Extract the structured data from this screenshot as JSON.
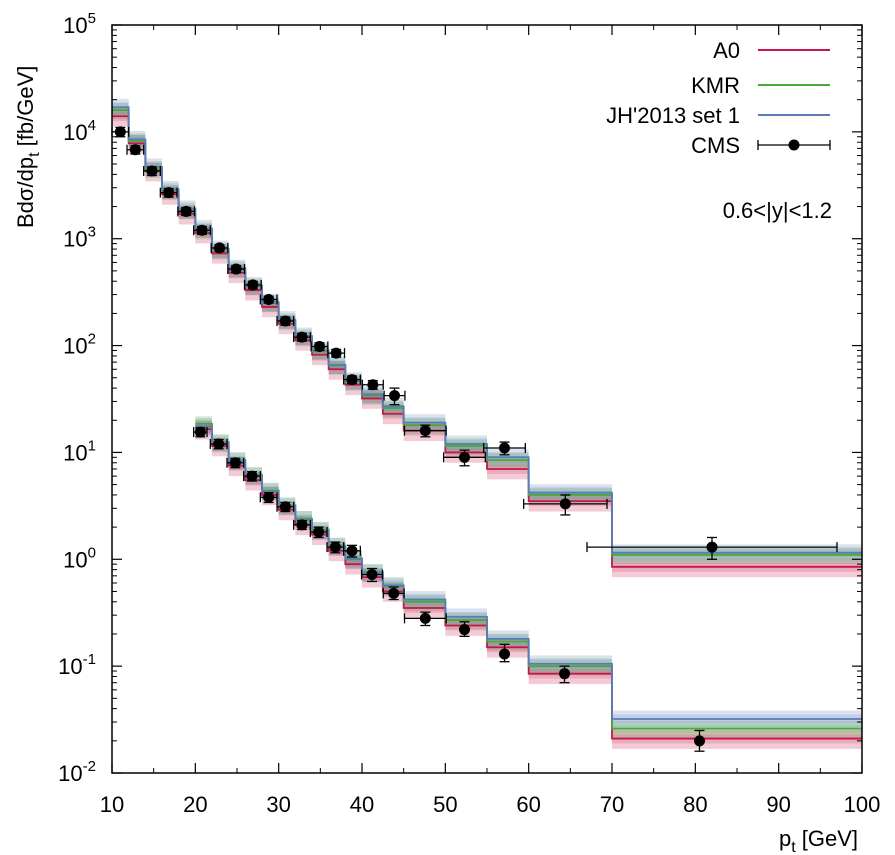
{
  "chart_data": {
    "type": "step",
    "title": "",
    "xlabel": {
      "main": "p",
      "sub": "t",
      "unit": " [GeV]"
    },
    "ylabel": {
      "main": "Bdσ/dp",
      "sub": "t",
      "unit": " [fb/GeV]"
    },
    "xlim": [
      10,
      100
    ],
    "ylim_log10": [
      -2,
      5
    ],
    "yscale": "log",
    "x_ticks": [
      {
        "v": 10,
        "label": "10"
      },
      {
        "v": 20,
        "label": "20"
      },
      {
        "v": 30,
        "label": "30"
      },
      {
        "v": 40,
        "label": "40"
      },
      {
        "v": 50,
        "label": "50"
      },
      {
        "v": 60,
        "label": "60"
      },
      {
        "v": 70,
        "label": "70"
      },
      {
        "v": 80,
        "label": "80"
      },
      {
        "v": 90,
        "label": "90"
      },
      {
        "v": 100,
        "label": "100"
      }
    ],
    "y_ticks": [
      {
        "exp": -2,
        "base": "10",
        "sup": "-2"
      },
      {
        "exp": -1,
        "base": "10",
        "sup": "-1"
      },
      {
        "exp": 0,
        "base": "10",
        "sup": "0"
      },
      {
        "exp": 1,
        "base": "10",
        "sup": "1"
      },
      {
        "exp": 2,
        "base": "10",
        "sup": "2"
      },
      {
        "exp": 3,
        "base": "10",
        "sup": "3"
      },
      {
        "exp": 4,
        "base": "10",
        "sup": "4"
      },
      {
        "exp": 5,
        "base": "10",
        "sup": "5"
      }
    ],
    "annotation": "0.6<|y|<1.2",
    "colors": {
      "A0": "#c8144b",
      "KMR": "#4aa83c",
      "JH2013": "#5a7ab8",
      "CMS": "#000000"
    },
    "legend": [
      {
        "key": "A0",
        "label": "A0"
      },
      {
        "key": "KMR",
        "label": "KMR"
      },
      {
        "key": "JH2013",
        "label": "JH'2013 set 1"
      },
      {
        "key": "CMS",
        "label": "CMS"
      }
    ],
    "datasets": [
      {
        "name": "upper",
        "bins": [
          [
            10,
            12
          ],
          [
            12,
            14
          ],
          [
            14,
            16
          ],
          [
            16,
            18
          ],
          [
            18,
            20
          ],
          [
            20,
            22
          ],
          [
            22,
            24
          ],
          [
            24,
            26
          ],
          [
            26,
            28
          ],
          [
            28,
            30
          ],
          [
            30,
            32
          ],
          [
            32,
            34
          ],
          [
            34,
            36
          ],
          [
            36,
            38
          ],
          [
            38,
            40
          ],
          [
            40,
            42.5
          ],
          [
            42.5,
            45
          ],
          [
            45,
            50
          ],
          [
            50,
            55
          ],
          [
            55,
            60
          ],
          [
            60,
            70
          ],
          [
            70,
            100
          ]
        ],
        "A0": [
          14000,
          7800,
          4300,
          2600,
          1700,
          1130,
          730,
          480,
          330,
          230,
          160,
          112,
          82,
          60,
          43,
          32,
          23,
          16,
          10.0,
          7.0,
          3.5,
          0.85
        ],
        "KMR": [
          16000,
          8200,
          4500,
          2800,
          1850,
          1200,
          780,
          520,
          360,
          250,
          170,
          120,
          88,
          65,
          46,
          34,
          26,
          18,
          11.5,
          8.5,
          4.0,
          1.1
        ],
        "JH2013": [
          17000,
          8500,
          4700,
          2900,
          1900,
          1250,
          800,
          530,
          365,
          255,
          175,
          123,
          90,
          66,
          47,
          35,
          27,
          19,
          12.0,
          9.0,
          4.2,
          1.15
        ],
        "cms_x": [
          11,
          12.8,
          14.8,
          16.8,
          18.9,
          20.8,
          22.9,
          24.9,
          26.9,
          28.8,
          30.8,
          32.8,
          34.9,
          36.9,
          38.8,
          41.3,
          43.9,
          47.6,
          52.3,
          57.1,
          64.4,
          82.0
        ],
        "cms_y": [
          10000,
          6800,
          4300,
          2700,
          1800,
          1200,
          820,
          520,
          370,
          270,
          170,
          120,
          98,
          85,
          48,
          43,
          34,
          16,
          9,
          11,
          3.3,
          1.3
        ],
        "cms_ylo": [
          9000,
          6200,
          3900,
          2450,
          1650,
          1100,
          760,
          480,
          340,
          250,
          155,
          110,
          90,
          78,
          44,
          39,
          28,
          14,
          7.5,
          9.5,
          2.6,
          1.0
        ],
        "cms_yhi": [
          11000,
          7400,
          4700,
          2950,
          1950,
          1300,
          880,
          560,
          400,
          290,
          185,
          130,
          106,
          92,
          52,
          47,
          40,
          18,
          10.5,
          12.5,
          4.0,
          1.6
        ],
        "cms_xerr": [
          1,
          1,
          1,
          1,
          1,
          1,
          1,
          1,
          1,
          1,
          1,
          1,
          1,
          1,
          1,
          1.25,
          1.25,
          2.5,
          2.5,
          2.5,
          5,
          15
        ]
      },
      {
        "name": "lower",
        "bins": [
          [
            20,
            22
          ],
          [
            22,
            24
          ],
          [
            24,
            26
          ],
          [
            26,
            28
          ],
          [
            28,
            30
          ],
          [
            30,
            32
          ],
          [
            32,
            34
          ],
          [
            34,
            36
          ],
          [
            36,
            38
          ],
          [
            38,
            40
          ],
          [
            40,
            42.5
          ],
          [
            42.5,
            45
          ],
          [
            45,
            50
          ],
          [
            50,
            55
          ],
          [
            55,
            60
          ],
          [
            60,
            70
          ],
          [
            70,
            100
          ]
        ],
        "A0": [
          16.5,
          11.5,
          7.5,
          5.5,
          4.0,
          2.9,
          2.1,
          1.7,
          1.2,
          0.9,
          0.68,
          0.5,
          0.35,
          0.24,
          0.15,
          0.085,
          0.021
        ],
        "KMR": [
          18.5,
          12.5,
          8.5,
          6.2,
          4.4,
          3.2,
          2.4,
          1.9,
          1.35,
          1.02,
          0.76,
          0.56,
          0.4,
          0.27,
          0.17,
          0.1,
          0.026
        ],
        "JH2013": [
          17.5,
          12.2,
          8.3,
          6.0,
          4.3,
          3.15,
          2.35,
          1.85,
          1.32,
          1.0,
          0.75,
          0.57,
          0.42,
          0.29,
          0.18,
          0.105,
          0.032
        ],
        "cms_x": [
          20.6,
          22.8,
          24.8,
          26.8,
          28.8,
          30.8,
          32.8,
          34.8,
          36.8,
          38.8,
          41.2,
          43.8,
          47.6,
          52.3,
          57.1,
          64.3,
          80.5
        ],
        "cms_y": [
          15.5,
          12.0,
          8.0,
          6.0,
          3.8,
          3.1,
          2.1,
          1.8,
          1.3,
          1.2,
          0.72,
          0.48,
          0.28,
          0.22,
          0.13,
          0.085,
          0.02
        ],
        "cms_ylo": [
          14.0,
          10.8,
          7.2,
          5.4,
          3.4,
          2.8,
          1.9,
          1.6,
          1.15,
          1.05,
          0.62,
          0.42,
          0.24,
          0.19,
          0.11,
          0.07,
          0.016
        ],
        "cms_yhi": [
          17.0,
          13.2,
          8.8,
          6.6,
          4.2,
          3.4,
          2.3,
          2.0,
          1.45,
          1.35,
          0.82,
          0.55,
          0.32,
          0.26,
          0.16,
          0.1,
          0.025
        ],
        "cms_xerr": [
          0.8,
          1,
          1,
          1,
          1,
          1,
          1,
          1,
          1,
          1,
          1.25,
          1.25,
          2.5,
          0,
          0,
          0,
          0
        ]
      }
    ]
  }
}
